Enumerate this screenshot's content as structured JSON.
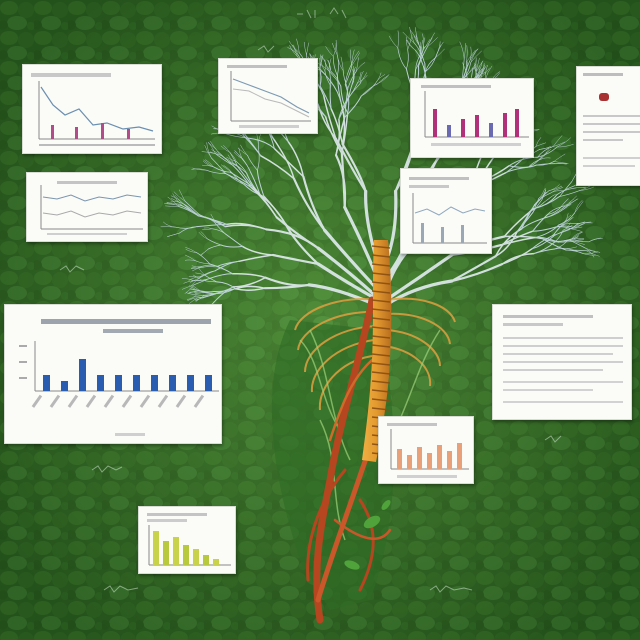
{
  "scene": {
    "subject": "tree-of-veins-with-chart-cards",
    "colors": {
      "background_dark": "#1f4a17",
      "background_mid": "#3c7a2c",
      "background_light": "#5c9a3e",
      "branch_white": "#e9f1f4",
      "branch_blue": "#b9d3e6",
      "trunk_orange": "#d9902a",
      "trunk_red": "#b5461f",
      "card_paper": "#fbfbf8",
      "bar_blue": "#2a5db0",
      "bar_magenta": "#b0307a",
      "bar_peach": "#e8a07a",
      "bar_yellowgreen": "#c8d24a"
    }
  },
  "cards": [
    {
      "name": "card-top-left",
      "chart": "line"
    },
    {
      "name": "card-top-center",
      "chart": "line"
    },
    {
      "name": "card-top-right",
      "chart": "bar"
    },
    {
      "name": "card-far-right",
      "chart": "text"
    },
    {
      "name": "card-mid-left",
      "chart": "line"
    },
    {
      "name": "card-mid-center",
      "chart": "text"
    },
    {
      "name": "card-large-left",
      "chart": "bar"
    },
    {
      "name": "card-right-middle",
      "chart": "text"
    },
    {
      "name": "card-center-bars",
      "chart": "bar"
    },
    {
      "name": "card-bottom-left",
      "chart": "bar"
    }
  ]
}
